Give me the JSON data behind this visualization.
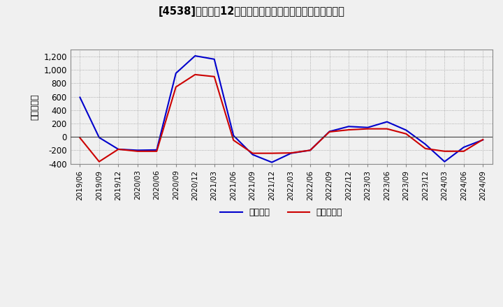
{
  "title": "[4538]　利益の12か月移動合計の対前年同期増減額の推移",
  "ylabel": "（百万円）",
  "background_color": "#f0f0f0",
  "plot_bg_color": "#f0f0f0",
  "grid_color": "#999999",
  "ylim": [
    -400,
    1300
  ],
  "yticks": [
    -400,
    -200,
    0,
    200,
    400,
    600,
    800,
    1000,
    1200
  ],
  "legend_labels": [
    "経常利益",
    "当期純利益"
  ],
  "line_colors": [
    "#0000cc",
    "#cc0000"
  ],
  "x_labels": [
    "2019/06",
    "2019/09",
    "2019/12",
    "2020/03",
    "2020/06",
    "2020/09",
    "2020/12",
    "2021/03",
    "2021/06",
    "2021/09",
    "2021/12",
    "2022/03",
    "2022/06",
    "2022/09",
    "2022/12",
    "2023/03",
    "2023/06",
    "2023/09",
    "2023/12",
    "2024/03",
    "2024/06",
    "2024/09"
  ],
  "operating_profit": [
    590,
    -10,
    -185,
    -200,
    -195,
    950,
    1210,
    1160,
    20,
    -265,
    -380,
    -245,
    -200,
    80,
    155,
    140,
    225,
    100,
    -110,
    -370,
    -155,
    -45
  ],
  "net_profit": [
    -15,
    -370,
    -185,
    -215,
    -215,
    745,
    930,
    900,
    -50,
    -245,
    -245,
    -240,
    -200,
    75,
    105,
    120,
    120,
    45,
    -175,
    -215,
    -215,
    -40
  ]
}
